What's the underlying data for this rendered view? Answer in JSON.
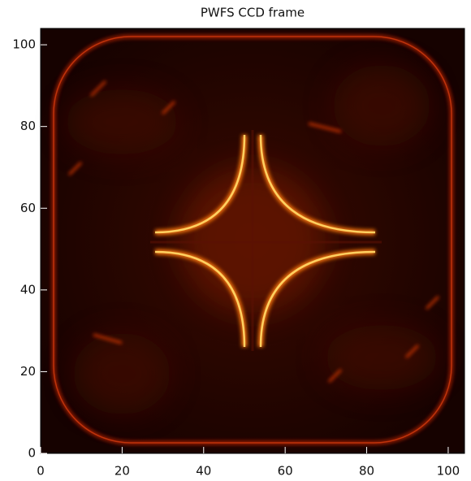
{
  "chart_data": {
    "type": "image",
    "title": "PWFS CCD frame",
    "xlim": [
      0,
      104
    ],
    "ylim": [
      0,
      104
    ],
    "xticks": [
      0,
      20,
      40,
      60,
      80,
      100
    ],
    "yticks": [
      0,
      20,
      40,
      60,
      80,
      100
    ]
  }
}
